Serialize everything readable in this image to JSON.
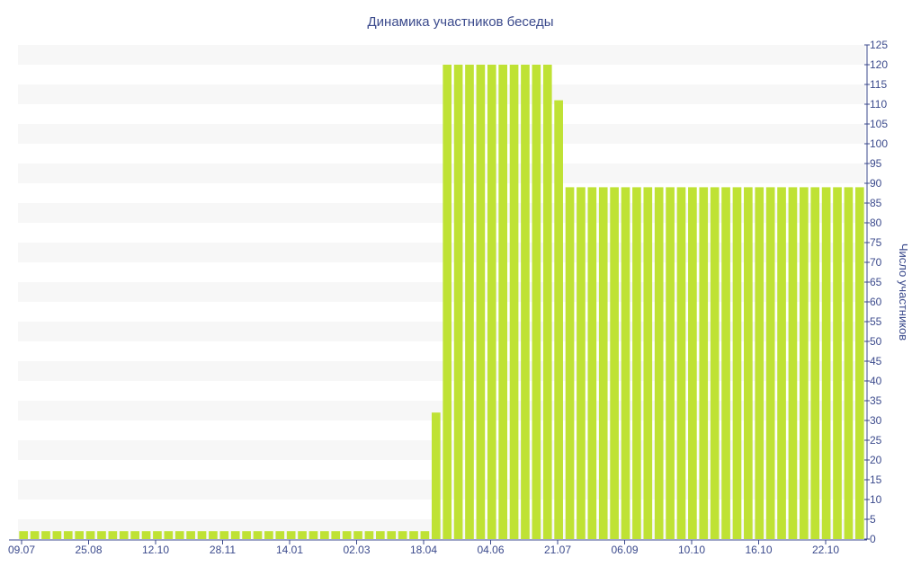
{
  "chart_data": {
    "type": "bar",
    "title": "Динамика участников беседы",
    "xlabel": "",
    "ylabel": "Число участников",
    "ylim": [
      0,
      125
    ],
    "y_ticks": [
      0,
      5,
      10,
      15,
      20,
      25,
      30,
      35,
      40,
      45,
      50,
      55,
      60,
      65,
      70,
      75,
      80,
      85,
      90,
      95,
      100,
      105,
      110,
      115,
      120,
      125
    ],
    "x_tick_labels": [
      "09.07",
      "25.08",
      "12.10",
      "28.11",
      "14.01",
      "02.03",
      "18.04",
      "04.06",
      "21.07",
      "06.09",
      "10.10",
      "16.10",
      "22.10"
    ],
    "grid": "horizontal alternating bands",
    "bar_color": "#bfe234",
    "values": [
      2,
      2,
      2,
      2,
      2,
      2,
      2,
      2,
      2,
      2,
      2,
      2,
      2,
      2,
      2,
      2,
      2,
      2,
      2,
      2,
      2,
      2,
      2,
      2,
      2,
      2,
      2,
      2,
      2,
      2,
      2,
      2,
      2,
      2,
      2,
      2,
      2,
      32,
      120,
      120,
      120,
      120,
      120,
      120,
      120,
      120,
      120,
      120,
      111,
      89,
      89,
      89,
      89,
      89,
      89,
      89,
      89,
      89,
      89,
      89,
      89,
      89,
      89,
      89,
      89,
      89,
      89,
      89,
      89,
      89,
      89,
      89,
      89,
      89,
      89,
      89
    ]
  }
}
